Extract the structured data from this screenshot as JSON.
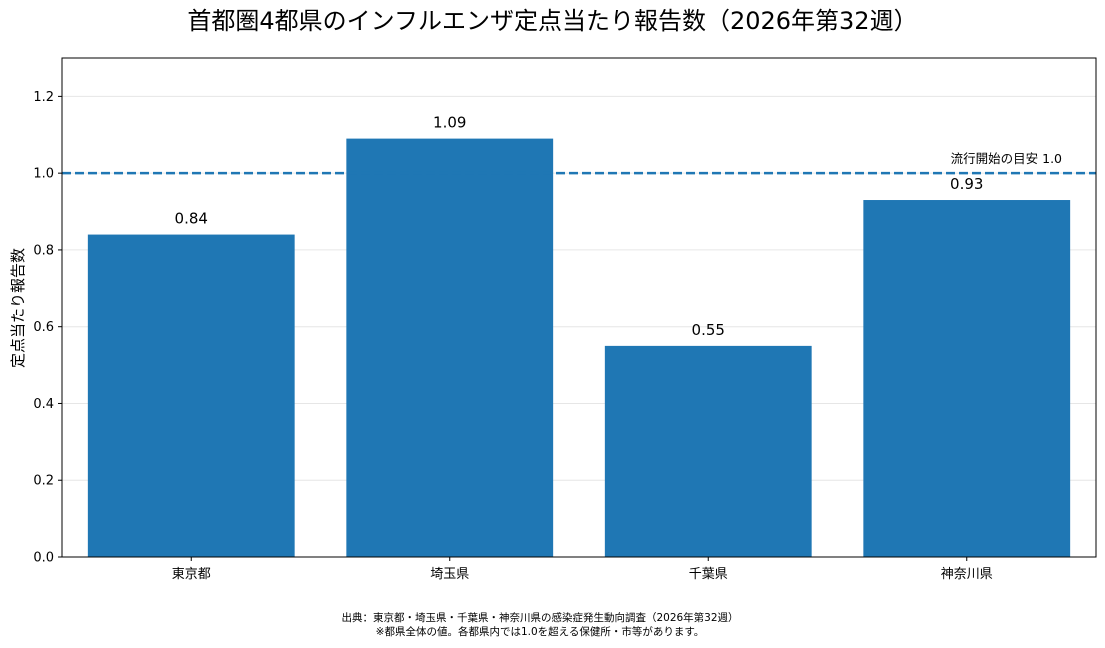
{
  "chart_data": {
    "type": "bar",
    "title": "首都圏4都県のインフルエンザ定点当たり報告数（2026年第32週）",
    "xlabel": "",
    "ylabel": "定点当たり報告数",
    "categories": [
      "東京都",
      "埼玉県",
      "千葉県",
      "神奈川県"
    ],
    "values": [
      0.84,
      1.09,
      0.55,
      0.93
    ],
    "value_labels": [
      "0.84",
      "1.09",
      "0.55",
      "0.93"
    ],
    "ylim": [
      0,
      1.3
    ],
    "yticks": [
      0.0,
      0.2,
      0.4,
      0.6,
      0.8,
      1.0,
      1.2
    ],
    "ytick_labels": [
      "0.0",
      "0.2",
      "0.4",
      "0.6",
      "0.8",
      "1.0",
      "1.2"
    ],
    "grid": "horizontal",
    "bar_color": "#1f77b4",
    "reference_line": {
      "value": 1.0,
      "label": "流行開始の目安 1.0",
      "style": "dashed",
      "color": "#1f77b4"
    }
  },
  "footer": {
    "source": "出典：東京都・埼玉県・千葉県・神奈川県の感染症発生動向調査（2026年第32週）",
    "note": "※都県全体の値。各都県内では1.0を超える保健所・市等があります。"
  }
}
